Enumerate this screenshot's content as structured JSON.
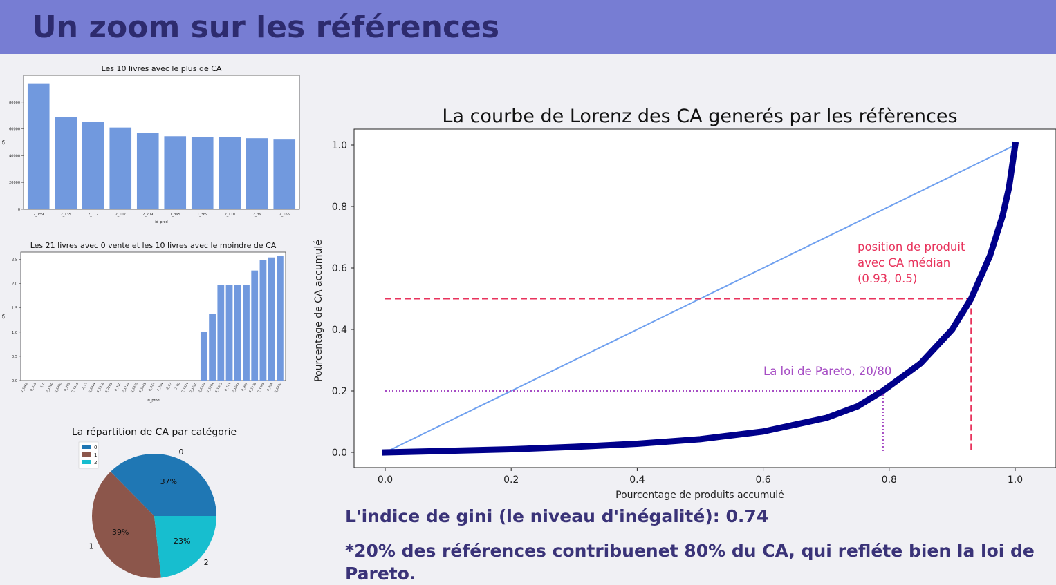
{
  "header": {
    "title": "Un zoom sur les références"
  },
  "notes": {
    "gini": "L'indice de gini (le niveau d'inégalité): 0.74",
    "pareto": "*20% des références contribuenet 80% du CA, qui refléte bien la loi de Pareto."
  },
  "colors": {
    "header_bg": "#777dd3",
    "title": "#2d2b6e",
    "bar": "#7199de",
    "lorenz": "#00008b",
    "diagonal": "#6fa0ef",
    "median": "#e8335c",
    "pareto": "#a64dc4"
  },
  "chart_data": [
    {
      "type": "bar",
      "title": "Les 10 livres avec le plus de CA",
      "xlabel": "id_prod",
      "ylabel": "CA",
      "categories": [
        "2_159",
        "2_135",
        "2_112",
        "2_102",
        "2_209",
        "1_395",
        "1_369",
        "2_110",
        "2_39",
        "2_166"
      ],
      "values": [
        94000,
        69000,
        65000,
        61000,
        57000,
        54500,
        54000,
        54000,
        53000,
        52500
      ],
      "ylim": [
        0,
        100000
      ],
      "yticks": [
        0,
        20000,
        40000,
        60000,
        80000
      ],
      "ytick_labels": [
        "0",
        "20000",
        "40000",
        "60000",
        "80000"
      ]
    },
    {
      "type": "bar",
      "title": "Les 21 livres avec 0 vente et les 10 livres avec le moindre de CA",
      "xlabel": "id_prod",
      "ylabel": "CA",
      "categories": [
        "0_1062",
        "0_510",
        "1_0",
        "0_1780",
        "0_1800",
        "0_299",
        "0_1016",
        "2_72",
        "0_1014",
        "0_1318",
        "0_2208",
        "0_310",
        "0_1119",
        "0_1025",
        "0_1645",
        "0_322",
        "1_394",
        "2_87",
        "2_86",
        "0_1624",
        "0_1620",
        "0_1539",
        "0_1284",
        "0_1653",
        "0_541",
        "0_1601",
        "0_807",
        "0_1728",
        "0_1498",
        "0_898",
        "0_1840"
      ],
      "values": [
        0,
        0,
        0,
        0,
        0,
        0,
        0,
        0,
        0,
        0,
        0,
        0,
        0,
        0,
        0,
        0,
        0,
        0,
        0,
        0,
        0,
        1.0,
        1.38,
        1.98,
        1.98,
        1.98,
        1.98,
        2.27,
        2.49,
        2.54,
        2.57
      ],
      "ylim": [
        0,
        2.65
      ],
      "yticks": [
        0,
        0.5,
        1.0,
        1.5,
        2.0,
        2.5
      ],
      "ytick_labels": [
        "0.0",
        "0.5",
        "1.0",
        "1.5",
        "2.0",
        "2.5"
      ]
    },
    {
      "type": "pie",
      "title": "La répartition de CA par catégorie",
      "labels": [
        "0",
        "1",
        "2"
      ],
      "values": [
        37,
        39,
        23
      ],
      "value_labels": [
        "37%",
        "39%",
        "23%"
      ],
      "colors": [
        "#1f77b4",
        "#8c564b",
        "#17becf"
      ],
      "legend": "top-left"
    },
    {
      "type": "line",
      "title": "La courbe de Lorenz des CA generés par les réfèrences",
      "xlabel": "Pourcentage de produits accumulé",
      "ylabel": "Pourcentage de CA accumulé",
      "xlim": [
        0,
        1
      ],
      "ylim": [
        0,
        1
      ],
      "xticks": [
        0,
        0.2,
        0.4,
        0.6,
        0.8,
        1.0
      ],
      "xtick_labels": [
        "0.0",
        "0.2",
        "0.4",
        "0.6",
        "0.8",
        "1.0"
      ],
      "yticks": [
        0,
        0.2,
        0.4,
        0.6,
        0.8,
        1.0
      ],
      "ytick_labels": [
        "0.0",
        "0.2",
        "0.4",
        "0.6",
        "0.8",
        "1.0"
      ],
      "series": [
        {
          "x": [
            0,
            0.1,
            0.2,
            0.3,
            0.4,
            0.5,
            0.6,
            0.7,
            0.75,
            0.79,
            0.85,
            0.9,
            0.93,
            0.96,
            0.98,
            0.99,
            1.0
          ],
          "y": [
            0,
            0.005,
            0.01,
            0.018,
            0.028,
            0.043,
            0.068,
            0.112,
            0.15,
            0.2,
            0.29,
            0.4,
            0.5,
            0.64,
            0.77,
            0.86,
            1.0
          ]
        },
        {
          "x": [
            0,
            1
          ],
          "y": [
            0,
            1
          ]
        }
      ],
      "annotations": [
        {
          "text_lines": [
            "position de produit",
            " avec CA médian",
            "(0.93, 0.5)"
          ],
          "x": 0.93,
          "y": 0.5
        },
        {
          "text_lines": [
            "La loi de Pareto, 20/80"
          ],
          "x": 0.79,
          "y": 0.2
        }
      ]
    }
  ]
}
